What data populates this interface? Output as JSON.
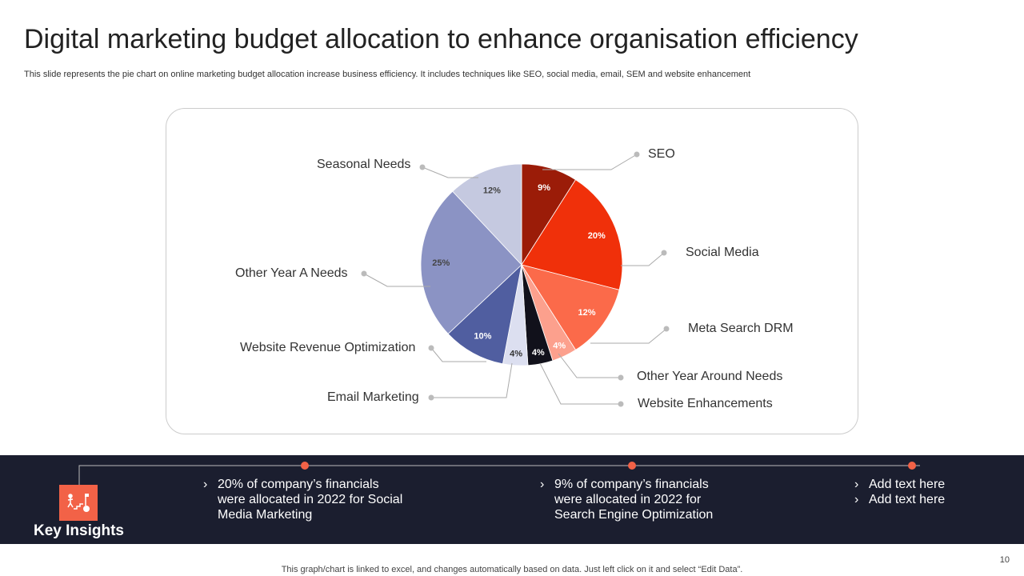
{
  "title": "Digital marketing budget allocation to enhance organisation efficiency",
  "subtitle": "This slide represents the pie chart on online marketing budget allocation increase business efficiency. It includes techniques like SEO, social media, email, SEM and website enhancement",
  "chart_data": {
    "type": "pie",
    "categories": [
      "SEO",
      "Social Media",
      "Meta Search DRM",
      "Other Year Around Needs",
      "Website Enhancements",
      "Email Marketing",
      "Website Revenue  Optimization",
      "Other Year A Needs",
      "Seasonal Needs"
    ],
    "values": [
      9,
      20,
      12,
      4,
      4,
      4,
      10,
      25,
      12
    ],
    "data_labels": [
      "9%",
      "20%",
      "12%",
      "4%",
      "4%",
      "4%",
      "10%",
      "25%",
      "12%"
    ],
    "colors": [
      "#9b1c08",
      "#f0300a",
      "#fb6a4a",
      "#fca08d",
      "#11111b",
      "#dcdff0",
      "#505ea0",
      "#8b93c4",
      "#c5c9e0"
    ],
    "label_colors": [
      "#fff",
      "#fff",
      "#fff",
      "#fff",
      "#fff",
      "#333",
      "#fff",
      "#444",
      "#444"
    ]
  },
  "insights": {
    "heading": "Key Insights",
    "icon": "career-steps-icon",
    "accent": "#f26247",
    "items": [
      {
        "lines": [
          "20% of company’s financials",
          "were allocated in 2022 for Social",
          "Media Marketing"
        ]
      },
      {
        "lines": [
          "9% of company’s financials",
          "were allocated in 2022 for",
          "Search Engine Optimization"
        ]
      },
      {
        "lines": [
          "Add text here",
          "Add text here"
        ],
        "bulleted_each": true
      }
    ]
  },
  "footer": "This graph/chart is linked to excel,  and changes automatically based on data. Just left click on it and select “Edit Data”.",
  "page_number": "10"
}
